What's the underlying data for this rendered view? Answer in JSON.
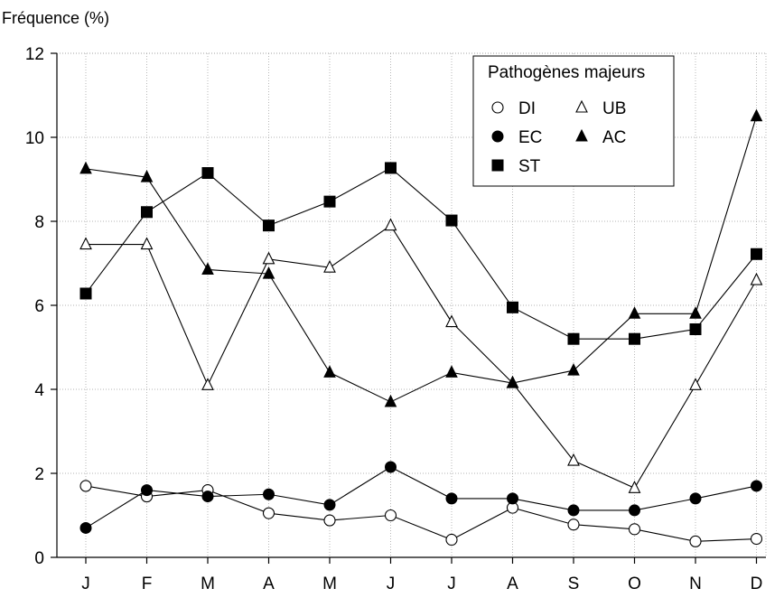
{
  "chart_data": {
    "type": "line",
    "title": "",
    "ylabel": "Fréquence (%)",
    "xlabel": "",
    "ylim": [
      0,
      12
    ],
    "y_ticks": [
      0,
      2,
      4,
      6,
      8,
      10,
      12
    ],
    "grid": true,
    "categories": [
      "J",
      "F",
      "M",
      "A",
      "M",
      "J",
      "J",
      "A",
      "S",
      "O",
      "N",
      "D"
    ],
    "legend": {
      "title": "Pathogènes majeurs",
      "placement": "top-right"
    },
    "series": [
      {
        "name": "DI",
        "marker": "circle-open",
        "values": [
          1.7,
          1.45,
          1.6,
          1.05,
          0.88,
          1.0,
          0.42,
          1.18,
          0.78,
          0.67,
          0.38,
          0.44
        ]
      },
      {
        "name": "UB",
        "marker": "triangle-open",
        "values": [
          7.45,
          7.45,
          4.1,
          7.1,
          6.9,
          7.9,
          5.6,
          4.15,
          2.3,
          1.65,
          4.1,
          6.6
        ]
      },
      {
        "name": "EC",
        "marker": "circle-filled",
        "values": [
          0.7,
          1.6,
          1.45,
          1.5,
          1.25,
          2.15,
          1.4,
          1.4,
          1.12,
          1.12,
          1.4,
          1.7
        ]
      },
      {
        "name": "AC",
        "marker": "triangle-filled",
        "values": [
          9.25,
          9.05,
          6.85,
          6.75,
          4.4,
          3.7,
          4.4,
          4.15,
          4.45,
          5.8,
          5.8,
          10.5
        ]
      },
      {
        "name": "ST",
        "marker": "square-filled",
        "values": [
          6.28,
          8.22,
          9.15,
          7.9,
          8.47,
          9.27,
          8.02,
          5.95,
          5.2,
          5.2,
          5.43,
          7.22
        ]
      }
    ]
  }
}
